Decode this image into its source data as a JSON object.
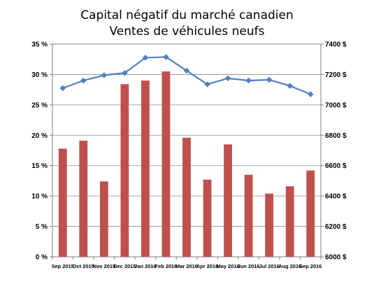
{
  "chart_data": {
    "type": "bar+line",
    "title": "Capital négatif du marché canadien",
    "subtitle": "Ventes de véhicules neufs",
    "categories": [
      "Sep 2015",
      "Oct 2015",
      "Nov 2015",
      "Dec 2015",
      "Jan 2016",
      "Feb 2016",
      "Mar 2016",
      "Apr 2016",
      "May 2016",
      "Jun 2016",
      "Jul 2016",
      "Aug 2016",
      "Sep 2016"
    ],
    "series": [
      {
        "type": "bar",
        "axis": "left",
        "color": "#c0504d",
        "values": [
          17.8,
          19.1,
          12.4,
          28.4,
          29.0,
          30.5,
          19.6,
          12.7,
          18.5,
          13.5,
          10.4,
          11.6,
          14.2
        ]
      },
      {
        "type": "line",
        "axis": "right",
        "color": "#4f81bd",
        "values": [
          7110,
          7160,
          7195,
          7210,
          7310,
          7315,
          7225,
          7135,
          7175,
          7160,
          7165,
          7125,
          7070
        ]
      }
    ],
    "y_left": {
      "min": 0,
      "max": 35,
      "step": 5,
      "tick_labels": [
        "0 %",
        "5 %",
        "10 %",
        "15 %",
        "20 %",
        "25 %",
        "30 %",
        "35 %"
      ]
    },
    "y_right": {
      "min": 6000,
      "max": 7400,
      "step": 200,
      "tick_labels": [
        "6000 $",
        "6200 $",
        "6400 $",
        "6600 $",
        "6800 $",
        "7000 $",
        "7200 $",
        "7400 $"
      ]
    },
    "grid": true,
    "legend": "none"
  }
}
